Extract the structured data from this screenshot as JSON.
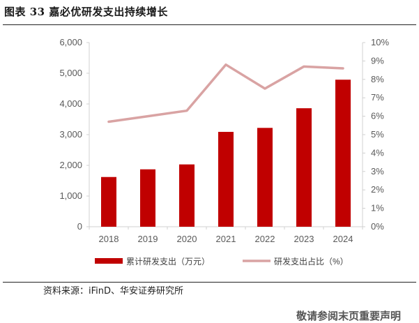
{
  "title": "图表 33 嘉必优研发支出持续增长",
  "source": "资料来源：iFinD、华安证券研究所",
  "footer": "敬请参阅末页重要声明",
  "colors": {
    "bar": "#c00000",
    "line": "#d9a3a3",
    "axis": "#d0d0d0",
    "tick_text": "#595959"
  },
  "chart_data": {
    "type": "bar",
    "categories": [
      "2018",
      "2019",
      "2020",
      "2021",
      "2022",
      "2023",
      "2024"
    ],
    "series": [
      {
        "name": "累计研发支出（万元）",
        "type": "bar",
        "axis": "left",
        "values": [
          1620,
          1870,
          2030,
          3090,
          3220,
          3860,
          4790
        ]
      },
      {
        "name": "研发支出占比（%）",
        "type": "line",
        "axis": "right",
        "values": [
          5.7,
          6.0,
          6.3,
          8.8,
          7.5,
          8.7,
          8.6
        ]
      }
    ],
    "y_left": {
      "lim": [
        0,
        6000
      ],
      "ticks": [
        "0",
        "1,000",
        "2,000",
        "3,000",
        "4,000",
        "5,000",
        "6,000"
      ]
    },
    "y_right": {
      "lim": [
        0,
        10
      ],
      "ticks": [
        "0%",
        "1%",
        "2%",
        "3%",
        "4%",
        "5%",
        "6%",
        "7%",
        "8%",
        "9%",
        "10%"
      ]
    },
    "legend": "bottom",
    "grid": false
  }
}
